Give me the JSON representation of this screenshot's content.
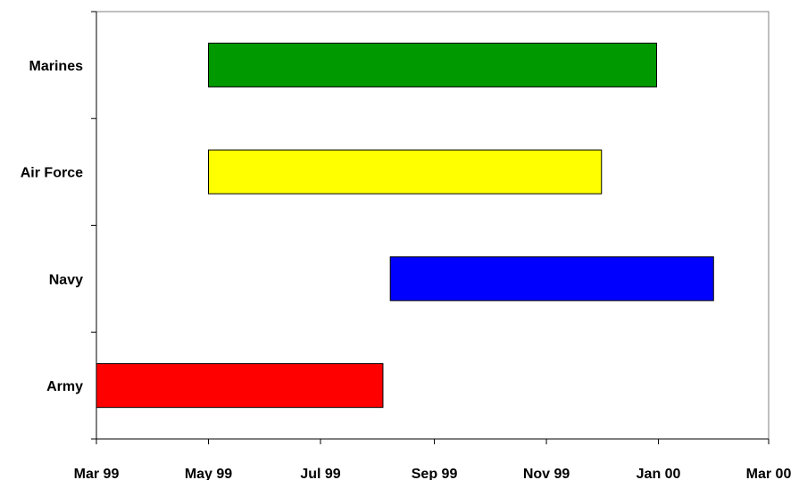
{
  "chart_data": {
    "type": "bar",
    "orientation": "horizontal",
    "subtype": "gantt",
    "title": "",
    "xlabel": "",
    "ylabel": "",
    "categories": [
      "Marines",
      "Air Force",
      "Navy",
      "Army"
    ],
    "bars": [
      {
        "category": "Marines",
        "start": "1999-05-01",
        "end": "1999-12-31",
        "color": "#009900"
      },
      {
        "category": "Air Force",
        "start": "1999-05-01",
        "end": "1999-12-01",
        "color": "#ffff00"
      },
      {
        "category": "Navy",
        "start": "1999-08-08",
        "end": "2000-01-31",
        "color": "#0000ff"
      },
      {
        "category": "Army",
        "start": "1999-03-01",
        "end": "1999-08-04",
        "color": "#ff0000"
      }
    ],
    "x_ticks": [
      {
        "date": "1999-03-01",
        "label": "Mar 99"
      },
      {
        "date": "1999-05-01",
        "label": "May 99"
      },
      {
        "date": "1999-07-01",
        "label": "Jul 99"
      },
      {
        "date": "1999-09-01",
        "label": "Sep 99"
      },
      {
        "date": "1999-11-01",
        "label": "Nov 99"
      },
      {
        "date": "2000-01-01",
        "label": "Jan 00"
      },
      {
        "date": "2000-03-01",
        "label": "Mar 00"
      }
    ],
    "xlim": [
      "1999-03-01",
      "2000-03-01"
    ],
    "grid": false,
    "legend": "none"
  }
}
